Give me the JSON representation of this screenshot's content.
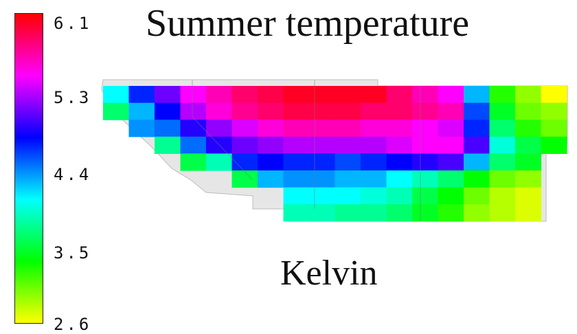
{
  "title": "Summer temperature",
  "units": "Kelvin",
  "colorbar": {
    "min": 2.6,
    "max": 6.1,
    "ticks": [
      "6.1",
      "5.3",
      "4.4",
      "3.5",
      "2.6"
    ],
    "tick_values": [
      6.1,
      5.3,
      4.4,
      3.5,
      2.6
    ],
    "colormap": [
      "#ffff00",
      "#00ff00",
      "#00ffff",
      "#0000ff",
      "#ff00ff",
      "#ff0000"
    ]
  },
  "grid": {
    "rows": [
      [
        4.0,
        4.6,
        5.0,
        5.4,
        5.6,
        5.8,
        5.9,
        6.0,
        6.0,
        6.0,
        6.0,
        5.8,
        5.6,
        5.4,
        4.2,
        3.2,
        2.9,
        2.6
      ],
      [
        3.6,
        4.2,
        4.7,
        5.2,
        5.5,
        5.7,
        5.8,
        5.9,
        5.9,
        5.9,
        5.8,
        5.8,
        5.7,
        5.6,
        4.5,
        3.4,
        3.0,
        2.9
      ],
      [
        null,
        4.3,
        4.4,
        4.8,
        5.1,
        5.3,
        5.5,
        5.6,
        5.6,
        5.6,
        5.5,
        5.5,
        5.4,
        5.3,
        4.6,
        3.6,
        3.2,
        3.0
      ],
      [
        null,
        null,
        3.7,
        4.4,
        4.8,
        5.0,
        5.1,
        5.2,
        5.2,
        5.2,
        5.2,
        5.3,
        5.4,
        5.4,
        4.9,
        3.9,
        3.5,
        3.3
      ],
      [
        null,
        null,
        null,
        3.5,
        3.8,
        4.6,
        4.7,
        4.6,
        4.6,
        4.5,
        4.6,
        4.7,
        4.8,
        4.9,
        4.2,
        3.6,
        3.4,
        null
      ],
      [
        null,
        null,
        null,
        null,
        null,
        3.5,
        4.2,
        4.3,
        4.3,
        4.2,
        4.2,
        4.0,
        3.8,
        3.6,
        3.3,
        3.0,
        2.9,
        null
      ],
      [
        null,
        null,
        null,
        null,
        null,
        null,
        null,
        4.0,
        4.0,
        4.0,
        3.9,
        3.8,
        3.5,
        3.3,
        3.0,
        2.8,
        2.7,
        null
      ],
      [
        null,
        null,
        null,
        null,
        null,
        null,
        null,
        3.8,
        3.8,
        3.7,
        3.7,
        3.6,
        3.4,
        3.2,
        2.9,
        2.8,
        2.7,
        null
      ]
    ]
  }
}
